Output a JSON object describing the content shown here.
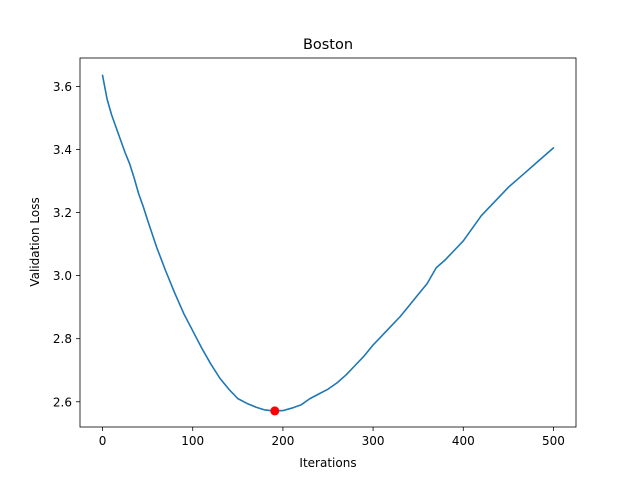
{
  "chart_data": {
    "type": "line",
    "title": "Boston",
    "xlabel": "Iterations",
    "ylabel": "Validation Loss",
    "xlim": [
      -25,
      525
    ],
    "ylim": [
      2.52,
      3.69
    ],
    "xticks": [
      0,
      100,
      200,
      300,
      400,
      500
    ],
    "xtick_labels": [
      "0",
      "100",
      "200",
      "300",
      "400",
      "500"
    ],
    "yticks": [
      2.6,
      2.8,
      3.0,
      3.2,
      3.4,
      3.6
    ],
    "ytick_labels": [
      "2.6",
      "2.8",
      "3.0",
      "3.2",
      "3.4",
      "3.6"
    ],
    "grid": false,
    "series": [
      {
        "color": "#1f77b4",
        "x": [
          0,
          5,
          10,
          15,
          20,
          25,
          30,
          35,
          40,
          45,
          50,
          60,
          70,
          80,
          90,
          100,
          110,
          120,
          130,
          140,
          150,
          160,
          170,
          180,
          190,
          200,
          210,
          220,
          230,
          240,
          250,
          260,
          270,
          280,
          290,
          300,
          310,
          320,
          330,
          340,
          350,
          360,
          370,
          380,
          390,
          400,
          410,
          420,
          430,
          440,
          450,
          460,
          470,
          480,
          490,
          500
        ],
        "values": [
          3.635,
          3.56,
          3.51,
          3.47,
          3.43,
          3.39,
          3.355,
          3.31,
          3.26,
          3.22,
          3.175,
          3.09,
          3.015,
          2.945,
          2.88,
          2.825,
          2.77,
          2.72,
          2.675,
          2.64,
          2.61,
          2.595,
          2.583,
          2.574,
          2.571,
          2.572,
          2.58,
          2.59,
          2.61,
          2.625,
          2.64,
          2.66,
          2.685,
          2.715,
          2.745,
          2.78,
          2.81,
          2.84,
          2.87,
          2.905,
          2.94,
          2.975,
          3.025,
          3.05,
          3.08,
          3.11,
          3.15,
          3.19,
          3.22,
          3.25,
          3.28,
          3.305,
          3.33,
          3.355,
          3.38,
          3.405
        ]
      }
    ],
    "highlight_point": {
      "x": 191,
      "y": 2.571,
      "color": "#ff0000"
    }
  }
}
